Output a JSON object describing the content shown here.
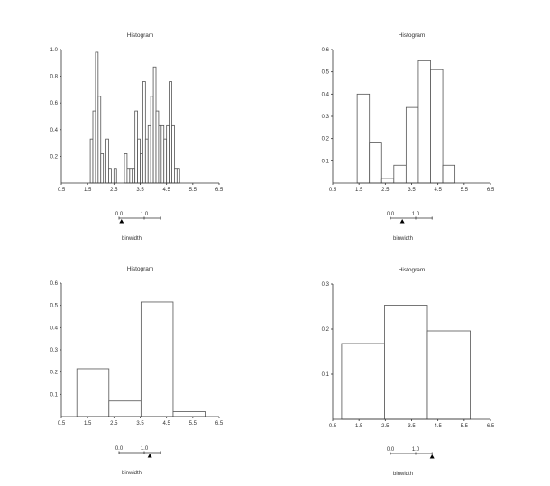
{
  "chart_data": [
    {
      "type": "bar",
      "title": "Histogram",
      "xlim": [
        0.5,
        6.5
      ],
      "xticks": [
        "0.5",
        "1.5",
        "2.5",
        "3.5",
        "4.5",
        "5.5",
        "6.5"
      ],
      "ylim": [
        0,
        1.0
      ],
      "yticks": [
        "0.2",
        "0.4",
        "0.6",
        "0.8",
        "1.0"
      ],
      "bin_start": 1.6,
      "bin_width": 0.1,
      "values": [
        0.33,
        0.54,
        0.98,
        0.65,
        0.22,
        0,
        0.33,
        0.11,
        0,
        0.11,
        0,
        0,
        0,
        0.22,
        0.11,
        0.11,
        0.11,
        0.54,
        0.33,
        0.22,
        0.76,
        0.33,
        0.43,
        0.65,
        0.87,
        0.54,
        0.43,
        0.43,
        0.33,
        0.43,
        0.76,
        0.43,
        0.11,
        0.11
      ],
      "slider": {
        "label": "binwidth",
        "tick_labels": [
          "0.0",
          "1.0"
        ],
        "value": 0.1,
        "max": 1.65
      }
    },
    {
      "type": "bar",
      "title": "Histogram",
      "xlim": [
        0.5,
        6.5
      ],
      "xticks": [
        "0.5",
        "1.5",
        "2.5",
        "3.5",
        "4.5",
        "5.5",
        "6.5"
      ],
      "ylim": [
        0,
        0.6
      ],
      "yticks": [
        "0.1",
        "0.2",
        "0.3",
        "0.4",
        "0.5",
        "0.6"
      ],
      "bin_start": 1.43,
      "bin_width": 0.465,
      "values": [
        0.4,
        0.18,
        0.02,
        0.08,
        0.34,
        0.55,
        0.51,
        0.08
      ],
      "slider": {
        "label": "binwidth",
        "tick_labels": [
          "0.0",
          "1.0"
        ],
        "value": 0.47,
        "max": 1.65
      }
    },
    {
      "type": "bar",
      "title": "Histogram",
      "xlim": [
        0.5,
        6.5
      ],
      "xticks": [
        "0.5",
        "1.5",
        "2.5",
        "3.5",
        "4.5",
        "5.5",
        "6.5"
      ],
      "ylim": [
        0,
        0.6
      ],
      "yticks": [
        "0.1",
        "0.2",
        "0.3",
        "0.4",
        "0.5",
        "0.6"
      ],
      "bin_start": 1.09,
      "bin_width": 1.22,
      "values": [
        0.215,
        0.07,
        0.515,
        0.022
      ],
      "slider": {
        "label": "binwidth",
        "tick_labels": [
          "0.0",
          "1.0"
        ],
        "value": 1.22,
        "max": 1.65
      }
    },
    {
      "type": "bar",
      "title": "Histogram",
      "xlim": [
        0.5,
        6.5
      ],
      "xticks": [
        "0.5",
        "1.5",
        "2.5",
        "3.5",
        "4.5",
        "5.5",
        "6.5"
      ],
      "ylim": [
        0,
        0.3
      ],
      "yticks": [
        "0.1",
        "0.2",
        "0.3"
      ],
      "bin_start": 0.84,
      "bin_width": 1.63,
      "values": [
        0.168,
        0.253,
        0.196
      ],
      "slider": {
        "label": "binwidth",
        "tick_labels": [
          "0.0",
          "1.0"
        ],
        "value": 1.65,
        "max": 1.65
      }
    }
  ]
}
